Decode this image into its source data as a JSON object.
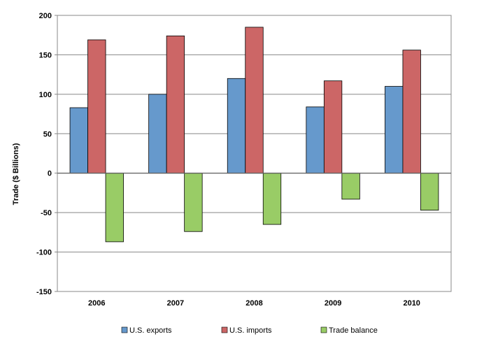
{
  "chart_data": {
    "type": "bar",
    "title": "",
    "xlabel": "",
    "ylabel": "Trade ($ Billions)",
    "categories": [
      "2006",
      "2007",
      "2008",
      "2009",
      "2010"
    ],
    "series": [
      {
        "name": "U.S. exports",
        "values": [
          83,
          100,
          120,
          84,
          110
        ],
        "color": "#6699cc"
      },
      {
        "name": "U.S. imports",
        "values": [
          169,
          174,
          185,
          117,
          156
        ],
        "color": "#cc6666"
      },
      {
        "name": "Trade balance",
        "values": [
          -87,
          -74,
          -65,
          -33,
          -47
        ],
        "color": "#99cc66"
      }
    ],
    "ylim": [
      -150,
      200
    ],
    "yticks": [
      200,
      150,
      100,
      50,
      0,
      -50,
      -100,
      -150
    ],
    "ytick_labels": [
      "200",
      "150",
      "100",
      "50",
      "0",
      "-50",
      "-100",
      "-150"
    ],
    "grid": true,
    "legend_position": "bottom"
  }
}
